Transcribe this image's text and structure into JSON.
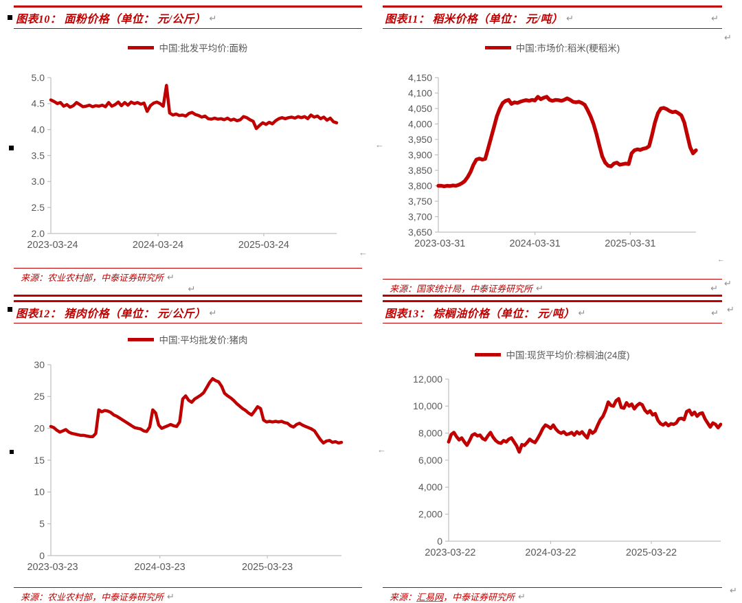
{
  "accent_color": "#c00000",
  "label_color": "#595959",
  "marks": {
    "pilcrow": "↵",
    "left_arrow": "←",
    "bullet": "▪"
  },
  "figures": [
    {
      "title": "图表10： 面粉价格（单位： 元/公斤）",
      "legend": "中国:批发平均价:面粉",
      "source_label": "来源：",
      "source_link": "",
      "source_text": "农业农村部，中泰证券研究所"
    },
    {
      "title": "图表11： 稻米价格（单位： 元/吨）",
      "legend": "中国:市场价:稻米(粳稻米)",
      "source_label": "来源：",
      "source_link": "",
      "source_text": "国家统计局，中泰证券研究所"
    },
    {
      "title": "图表12： 猪肉价格（单位： 元/公斤）",
      "legend": "中国:平均批发价:猪肉",
      "source_label": "来源：",
      "source_link": "",
      "source_text": "农业农村部，中泰证券研究所"
    },
    {
      "title": "图表13： 棕榈油价格（单位： 元/吨）",
      "legend": "中国:现货平均价:棕榈油(24度)",
      "source_label": "来源：",
      "source_link": "汇易网",
      "source_text": "，中泰证券研究所"
    }
  ],
  "chart_data": [
    {
      "type": "line",
      "title": "面粉价格（元/公斤）",
      "series_name": "中国:批发平均价:面粉",
      "line_color": "#c00000",
      "grid": false,
      "legend_position": "top",
      "xticks": [
        "2023-03-24",
        "2024-03-24",
        "2025-03-24"
      ],
      "ylim": [
        2.0,
        5.0
      ],
      "yticks": [
        "5.0",
        "4.5",
        "4.0",
        "3.5",
        "3.0",
        "2.5",
        "2.0"
      ],
      "values": [
        4.57,
        4.54,
        4.5,
        4.52,
        4.45,
        4.48,
        4.43,
        4.46,
        4.52,
        4.48,
        4.44,
        4.45,
        4.47,
        4.44,
        4.46,
        4.45,
        4.47,
        4.44,
        4.52,
        4.45,
        4.48,
        4.53,
        4.46,
        4.52,
        4.47,
        4.53,
        4.5,
        4.52,
        4.49,
        4.51,
        4.35,
        4.46,
        4.51,
        4.53,
        4.5,
        4.45,
        4.85,
        4.32,
        4.28,
        4.3,
        4.27,
        4.28,
        4.26,
        4.31,
        4.33,
        4.29,
        4.27,
        4.24,
        4.26,
        4.21,
        4.2,
        4.22,
        4.2,
        4.21,
        4.19,
        4.22,
        4.18,
        4.2,
        4.17,
        4.19,
        4.25,
        4.23,
        4.19,
        4.16,
        4.02,
        4.08,
        4.13,
        4.1,
        4.14,
        4.11,
        4.17,
        4.21,
        4.23,
        4.21,
        4.23,
        4.24,
        4.22,
        4.25,
        4.23,
        4.25,
        4.21,
        4.28,
        4.24,
        4.26,
        4.21,
        4.24,
        4.18,
        4.22,
        4.15,
        4.13
      ]
    },
    {
      "type": "line",
      "title": "稻米价格（元/吨）",
      "series_name": "中国:市场价:稻米(粳稻米)",
      "line_color": "#c00000",
      "grid": false,
      "legend_position": "top",
      "xticks": [
        "2023-03-31",
        "2024-03-31",
        "2025-03-31"
      ],
      "ylim": [
        3650,
        4150
      ],
      "yticks": [
        "4,150",
        "4,100",
        "4,050",
        "4,000",
        "3,950",
        "3,900",
        "3,850",
        "3,800",
        "3,750",
        "3,700",
        "3,650"
      ],
      "values": [
        3800,
        3800,
        3798,
        3800,
        3799,
        3801,
        3800,
        3803,
        3808,
        3815,
        3828,
        3845,
        3868,
        3885,
        3888,
        3885,
        3887,
        3920,
        3955,
        3990,
        4025,
        4050,
        4068,
        4075,
        4078,
        4065,
        4070,
        4068,
        4072,
        4075,
        4077,
        4075,
        4078,
        4076,
        4088,
        4080,
        4085,
        4088,
        4078,
        4075,
        4078,
        4077,
        4075,
        4078,
        4083,
        4078,
        4072,
        4070,
        4072,
        4068,
        4062,
        4045,
        4025,
        4000,
        3968,
        3930,
        3895,
        3875,
        3865,
        3863,
        3872,
        3875,
        3868,
        3870,
        3872,
        3870,
        3905,
        3915,
        3918,
        3916,
        3920,
        3922,
        3928,
        3965,
        4005,
        4035,
        4050,
        4052,
        4048,
        4042,
        4038,
        4040,
        4035,
        4028,
        4005,
        3965,
        3925,
        3905,
        3915
      ]
    },
    {
      "type": "line",
      "title": "猪肉价格（元/公斤）",
      "series_name": "中国:平均批发价:猪肉",
      "line_color": "#c00000",
      "grid": false,
      "legend_position": "top",
      "xticks": [
        "2023-03-23",
        "2024-03-23",
        "2025-03-23"
      ],
      "ylim": [
        0,
        30
      ],
      "yticks": [
        "30",
        "25",
        "20",
        "15",
        "10",
        "5",
        "0"
      ],
      "values": [
        20.3,
        20.1,
        19.7,
        19.4,
        19.6,
        19.8,
        19.4,
        19.2,
        19.1,
        19.0,
        18.9,
        18.9,
        18.8,
        18.7,
        18.7,
        19.2,
        22.9,
        22.6,
        22.8,
        22.7,
        22.5,
        22.1,
        21.9,
        21.6,
        21.3,
        21.0,
        20.7,
        20.4,
        20.1,
        20.0,
        19.9,
        19.6,
        19.5,
        20.2,
        22.9,
        22.4,
        20.5,
        20.0,
        20.2,
        20.4,
        20.6,
        20.4,
        20.3,
        21.0,
        24.6,
        25.1,
        24.4,
        24.1,
        24.6,
        24.9,
        25.2,
        25.6,
        26.4,
        27.2,
        27.8,
        27.5,
        27.3,
        26.6,
        25.5,
        25.1,
        24.8,
        24.4,
        23.9,
        23.5,
        23.1,
        22.8,
        22.4,
        22.1,
        22.7,
        23.4,
        23.1,
        21.3,
        21.0,
        21.1,
        21.0,
        21.1,
        21.0,
        21.1,
        20.9,
        20.8,
        20.4,
        20.2,
        20.6,
        20.8,
        20.5,
        20.3,
        20.1,
        19.9,
        19.6,
        18.9,
        18.2,
        17.7,
        18.0,
        18.1,
        17.8,
        17.9,
        17.7,
        17.8
      ]
    },
    {
      "type": "line",
      "title": "棕榈油价格（元/吨）",
      "series_name": "中国:现货平均价:棕榈油(24度)",
      "line_color": "#c00000",
      "grid": false,
      "legend_position": "top",
      "xticks": [
        "2023-03-22",
        "2024-03-22",
        "2025-03-22"
      ],
      "ylim": [
        0,
        12000
      ],
      "yticks": [
        "12,000",
        "10,000",
        "8,000",
        "6,000",
        "4,000",
        "2,000",
        "0"
      ],
      "values": [
        7350,
        7900,
        8050,
        7750,
        7500,
        7650,
        7350,
        7100,
        7450,
        7850,
        7950,
        7800,
        7850,
        7600,
        7500,
        7800,
        8050,
        7700,
        7450,
        7300,
        7250,
        7450,
        7350,
        7550,
        7650,
        7350,
        7050,
        6600,
        7150,
        7100,
        7300,
        7550,
        7400,
        7300,
        7600,
        7950,
        8350,
        8600,
        8500,
        8350,
        8600,
        8300,
        8100,
        8000,
        8100,
        7900,
        7950,
        8050,
        7850,
        8100,
        7950,
        8100,
        7850,
        7650,
        8200,
        8000,
        8150,
        8600,
        9000,
        9250,
        9700,
        10300,
        10050,
        10000,
        10400,
        10550,
        9900,
        9850,
        10250,
        10000,
        10150,
        9800,
        10050,
        10200,
        10100,
        9700,
        9500,
        9650,
        9350,
        9450,
        8950,
        8700,
        8600,
        8750,
        8550,
        8700,
        8650,
        8750,
        9050,
        9100,
        9000,
        9600,
        9700,
        9350,
        9550,
        9250,
        9450,
        9500,
        9050,
        8750,
        8450,
        8750,
        8650,
        8400,
        8650
      ]
    }
  ]
}
